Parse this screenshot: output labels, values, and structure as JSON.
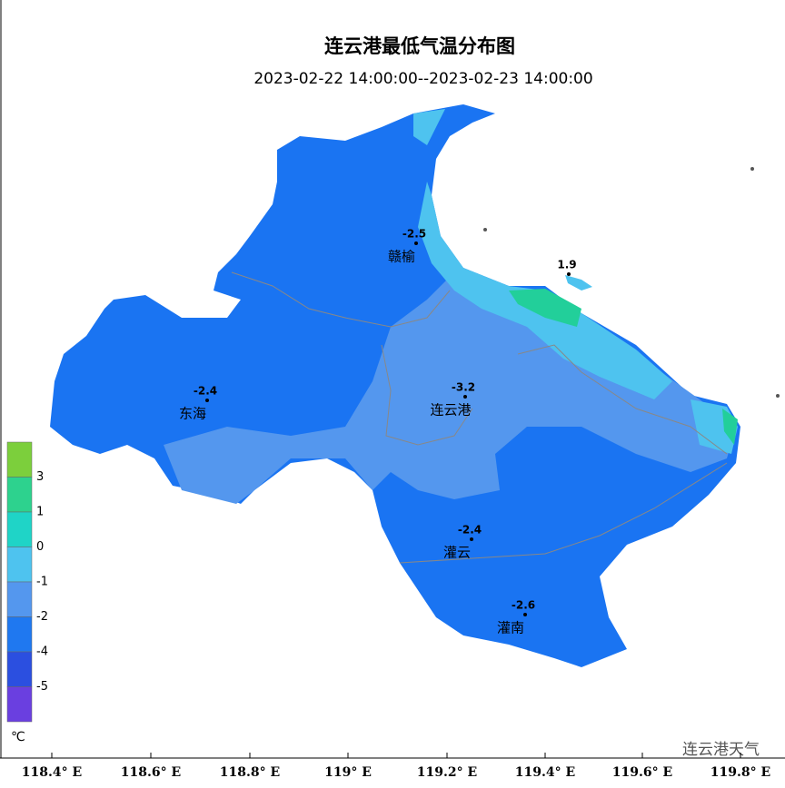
{
  "header": {
    "title": "连云港最低气温分布图",
    "subtitle": "2023-02-22 14:00:00--2023-02-23 14:00:00"
  },
  "stations": [
    {
      "name": "赣榆",
      "value": -2.5
    },
    {
      "name": "连云港",
      "value": -3.2
    },
    {
      "name": "东海",
      "value": -2.4
    },
    {
      "name": "灌云",
      "value": -2.4
    },
    {
      "name": "灌南",
      "value": -2.6
    },
    {
      "name": null,
      "value": 1.9
    }
  ],
  "legend": {
    "unit": "℃",
    "colors": [
      "#7ccf3c",
      "#2dd28e",
      "#1fd4c7",
      "#4ec3ef",
      "#5497ee",
      "#1f78f0",
      "#2b4fe0",
      "#6a3fe0"
    ],
    "labels": [
      3,
      1,
      0,
      -1,
      -2,
      -4,
      -5
    ]
  },
  "x_axis": {
    "labels": [
      "118.4° E",
      "118.6° E",
      "118.8° E",
      "119° E",
      "119.2° E",
      "119.4° E",
      "119.6° E",
      "119.8° E"
    ]
  },
  "watermark": "连云港天气"
}
